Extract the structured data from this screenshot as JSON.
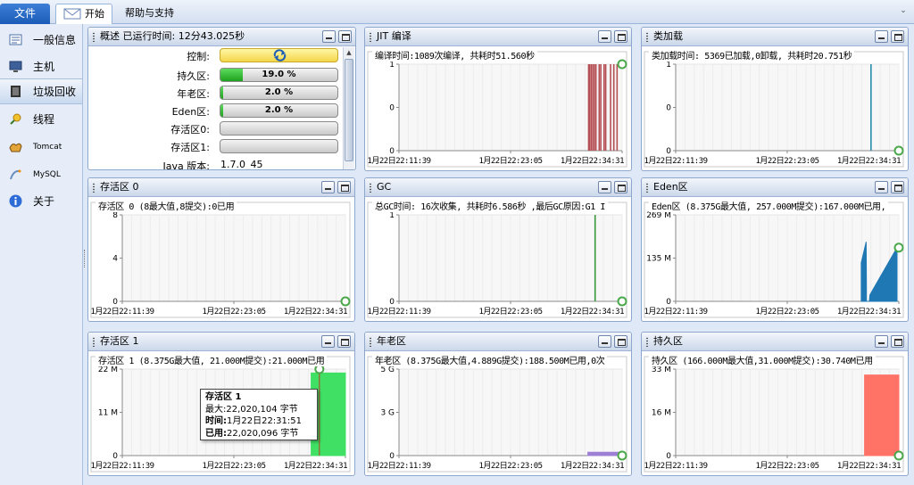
{
  "ribbon": {
    "file": "文件",
    "tabs": [
      "开始",
      "帮助与支持"
    ]
  },
  "sidebar": {
    "items": [
      {
        "label": "一般信息",
        "icon": "overview-icon"
      },
      {
        "label": "主机",
        "icon": "monitor-icon"
      },
      {
        "label": "垃圾回收",
        "icon": "gc-icon"
      },
      {
        "label": "线程",
        "icon": "thread-icon"
      },
      {
        "label": "Tomcat",
        "icon": "tomcat-icon"
      },
      {
        "label": "MySQL",
        "icon": "mysql-icon"
      },
      {
        "label": "关于",
        "icon": "info-icon"
      }
    ],
    "active": 2
  },
  "summary": {
    "title": "概述 已运行时间: 12分43.025秒",
    "rows": [
      {
        "label": "控制:",
        "kind": "control",
        "icon": "refresh-icon"
      },
      {
        "label": "持久区:",
        "value": "19.0 %",
        "fill": 0.19
      },
      {
        "label": "年老区:",
        "value": "2.0 %",
        "fill": 0.02
      },
      {
        "label": "Eden区:",
        "value": "2.0 %",
        "fill": 0.02
      },
      {
        "label": "存活区0:",
        "value": "",
        "fill": 0
      },
      {
        "label": "存活区1:",
        "value": "",
        "fill": 0
      },
      {
        "label": "Java 版本:",
        "value": "1.7.0_45"
      }
    ]
  },
  "tooltip": {
    "title": "存活区 1",
    "rows": [
      {
        "k": "最大:",
        "v": "22,020,104 字节"
      },
      {
        "k": "时间:",
        "v": "1月22日22:31:51"
      },
      {
        "k": "已用:",
        "v": "22,020,096 字节"
      }
    ]
  },
  "chart_data": [
    {
      "id": "jit",
      "type": "bar",
      "panel_title": "JIT 编译",
      "title": "编译时间:1089次编译, 共耗时51.560秒",
      "y_ticks": [
        "1",
        "0",
        "0"
      ],
      "x_ticks": [
        "1月22日22:11:39",
        "1月22日22:23:05",
        "1月22日22:34:31"
      ],
      "color": "#b55055",
      "ylim": [
        0,
        1
      ],
      "x": [
        "22:31:05",
        "22:31:10",
        "22:31:20",
        "22:31:30",
        "22:31:40",
        "22:31:50",
        "22:32:10",
        "22:32:20",
        "22:32:40",
        "22:32:50",
        "22:33:20",
        "22:33:40",
        "22:34:00"
      ],
      "values": [
        1,
        1,
        1,
        1,
        1,
        1,
        1,
        1,
        1,
        1,
        1,
        1,
        1
      ]
    },
    {
      "id": "classload",
      "type": "bar",
      "panel_title": "类加载",
      "title": "类加载时间: 5369已加载,0卸载, 共耗时20.751秒",
      "y_ticks": [
        "1",
        "0",
        "0"
      ],
      "x_ticks": [
        "1月22日22:11:39",
        "1月22日22:23:05",
        "1月22日22:34:31"
      ],
      "color": "#2a8faa",
      "ylim": [
        0,
        1
      ],
      "x": [
        "22:31:40"
      ],
      "values": [
        1
      ]
    },
    {
      "id": "s0",
      "type": "area",
      "panel_title": "存活区 0",
      "title": "存活区 0 (8最大值,8提交):0已用",
      "y_ticks": [
        "8",
        "4",
        "0"
      ],
      "x_ticks": [
        "1月22日22:11:39",
        "1月22日22:23:05",
        "1月22日22:34:31"
      ],
      "color": "#2f7dbb",
      "ylim": [
        0,
        8
      ],
      "x": [],
      "values": []
    },
    {
      "id": "gc",
      "type": "bar",
      "panel_title": "GC",
      "title": "总GC时间: 16次收集, 共耗时6.586秒 ,最后GC原因:G1 I",
      "y_ticks": [
        "1",
        "0"
      ],
      "x_ticks": [
        "1月22日22:11:39",
        "1月22日22:23:05",
        "1月22日22:34:31"
      ],
      "color": "#3c9a3c",
      "ylim": [
        0,
        1
      ],
      "x": [
        "22:31:45"
      ],
      "values": [
        1
      ]
    },
    {
      "id": "eden",
      "type": "area",
      "panel_title": "Eden区",
      "title": "Eden区 (8.375G最大值, 257.000M提交):167.000M已用,",
      "y_ticks": [
        "269 M",
        "135 M",
        "0"
      ],
      "x_ticks": [
        "1月22日22:11:39",
        "1月22日22:23:05",
        "1月22日22:34:31"
      ],
      "color": "#1f78b4",
      "ylim": [
        0,
        269
      ],
      "x": [
        "22:30:40",
        "22:30:40",
        "22:31:10",
        "22:31:12",
        "22:31:12",
        "22:31:30",
        "22:31:33",
        "22:34:20",
        "22:34:20"
      ],
      "values": [
        0,
        120,
        185,
        50,
        0,
        0,
        20,
        167,
        0
      ]
    },
    {
      "id": "s1",
      "type": "area",
      "panel_title": "存活区 1",
      "title": "存活区 1 (8.375G最大值, 21.000M提交):21.000M已用",
      "y_ticks": [
        "22 M",
        "11 M",
        "0"
      ],
      "x_ticks": [
        "1月22日22:11:39",
        "1月22日22:23:05",
        "1月22日22:34:31"
      ],
      "color": "#3fe063",
      "ylim": [
        0,
        22
      ],
      "x": [
        "22:31:00",
        "22:31:00",
        "22:34:31",
        "22:34:31"
      ],
      "values": [
        0,
        21,
        21,
        0
      ]
    },
    {
      "id": "old",
      "type": "area",
      "panel_title": "年老区",
      "title": "年老区 (8.375G最大值,4.889G提交):188.500M已用,0次",
      "y_ticks": [
        "5 G",
        "3 G",
        "0"
      ],
      "x_ticks": [
        "1月22日22:11:39",
        "1月22日22:23:05",
        "1月22日22:34:31"
      ],
      "color": "#9e7fd6",
      "ylim": [
        0,
        5
      ],
      "x": [
        "22:31:00",
        "22:31:00",
        "22:34:20",
        "22:34:20"
      ],
      "values": [
        0,
        0.19,
        0.19,
        0
      ]
    },
    {
      "id": "perm",
      "type": "area",
      "panel_title": "持久区",
      "title": "持久区 (166.000M最大值,31.000M提交):30.740M已用",
      "y_ticks": [
        "33 M",
        "16 M",
        "0"
      ],
      "x_ticks": [
        "1月22日22:11:39",
        "1月22日22:23:05",
        "1月22日22:34:31"
      ],
      "color": "#ff7366",
      "ylim": [
        0,
        33
      ],
      "x": [
        "22:31:00",
        "22:31:00",
        "22:34:31",
        "22:34:31"
      ],
      "values": [
        0,
        30.74,
        30.74,
        0
      ]
    }
  ]
}
